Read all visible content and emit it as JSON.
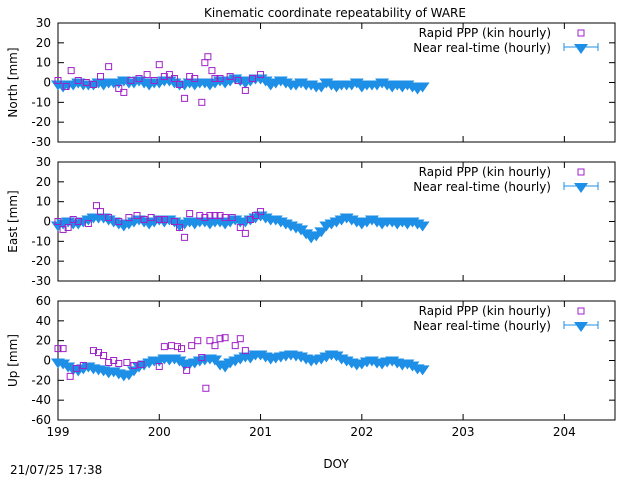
{
  "title": "Kinematic coordinate repeatability of WARE",
  "timestamp": "21/07/25 17:38",
  "colors": {
    "ppp": "#a020c8",
    "nrt": "#1e8fe6"
  },
  "chart_data": [
    {
      "type": "scatter",
      "title": "Kinematic coordinate repeatability of WARE",
      "xlabel": "DOY",
      "ylabel": "North [mm]",
      "xlim": [
        199,
        204.5
      ],
      "ylim": [
        -30,
        30
      ],
      "xticks": [
        "199",
        "200",
        "201",
        "202",
        "203",
        "204"
      ],
      "yticks": [
        "-30",
        "-20",
        "-10",
        "0",
        "10",
        "20",
        "30"
      ],
      "ytick_values": [
        -30,
        -20,
        -10,
        0,
        10,
        20,
        30
      ],
      "legend": "top-right",
      "series": [
        {
          "name": "Rapid PPP (kin hourly)",
          "marker": "square",
          "x": [
            199.0,
            199.08,
            199.13,
            199.2,
            199.28,
            199.35,
            199.42,
            199.5,
            199.6,
            199.65,
            199.72,
            199.8,
            199.88,
            199.95,
            200.0,
            200.05,
            200.1,
            200.15,
            200.2,
            200.25,
            200.3,
            200.35,
            200.42,
            200.45,
            200.48,
            200.52,
            200.55,
            200.6,
            200.7,
            200.78,
            200.85,
            200.92,
            201.0
          ],
          "y": [
            1,
            -2,
            6,
            1,
            0,
            -1,
            3,
            8,
            -3,
            -5,
            1,
            2,
            4,
            1,
            9,
            3,
            4,
            2,
            -1,
            -8,
            3,
            2,
            -10,
            10,
            13,
            6,
            2,
            2,
            3,
            1,
            -4,
            2,
            4
          ]
        },
        {
          "name": "Near real-time (hourly)",
          "marker": "triangle-down",
          "x": [
            199.0,
            199.05,
            199.1,
            199.15,
            199.2,
            199.25,
            199.3,
            199.35,
            199.4,
            199.45,
            199.5,
            199.55,
            199.6,
            199.65,
            199.7,
            199.75,
            199.8,
            199.85,
            199.9,
            199.95,
            200.0,
            200.05,
            200.1,
            200.15,
            200.2,
            200.25,
            200.3,
            200.35,
            200.4,
            200.45,
            200.5,
            200.55,
            200.6,
            200.65,
            200.7,
            200.75,
            200.8,
            200.85,
            200.9,
            200.95,
            201.0,
            201.05,
            201.1,
            201.15,
            201.2,
            201.25,
            201.3,
            201.35,
            201.4,
            201.45,
            201.5,
            201.55,
            201.6,
            201.65,
            201.7,
            201.75,
            201.8,
            201.85,
            201.9,
            201.95,
            202.0,
            202.05,
            202.1,
            202.15,
            202.2,
            202.25,
            202.3,
            202.35,
            202.4,
            202.45,
            202.5,
            202.55,
            202.6
          ],
          "y": [
            -1,
            -2,
            -1,
            -1,
            0,
            -1,
            -1,
            -1,
            0,
            -1,
            0,
            0,
            0,
            1,
            0,
            0,
            1,
            0,
            -1,
            0,
            0,
            1,
            1,
            0,
            -1,
            -1,
            0,
            -1,
            0,
            0,
            -1,
            0,
            1,
            0,
            1,
            2,
            1,
            0,
            1,
            2,
            2,
            1,
            -1,
            0,
            1,
            0,
            -1,
            -1,
            0,
            -1,
            -1,
            -2,
            -2,
            0,
            -1,
            -2,
            -1,
            -1,
            -1,
            0,
            -2,
            -1,
            -1,
            -1,
            0,
            -1,
            -2,
            -1,
            -2,
            -1,
            -2,
            -3,
            -2
          ]
        }
      ]
    },
    {
      "type": "scatter",
      "xlabel": "DOY",
      "ylabel": "East [mm]",
      "xlim": [
        199,
        204.5
      ],
      "ylim": [
        -30,
        30
      ],
      "xticks": [
        "199",
        "200",
        "201",
        "202",
        "203",
        "204"
      ],
      "yticks": [
        "-30",
        "-20",
        "-10",
        "0",
        "10",
        "20",
        "30"
      ],
      "ytick_values": [
        -30,
        -20,
        -10,
        0,
        10,
        20,
        30
      ],
      "legend": "top-right",
      "series": [
        {
          "name": "Rapid PPP (kin hourly)",
          "marker": "square",
          "x": [
            199.0,
            199.05,
            199.1,
            199.15,
            199.2,
            199.3,
            199.38,
            199.42,
            199.5,
            199.6,
            199.7,
            199.78,
            199.85,
            199.92,
            200.0,
            200.05,
            200.15,
            200.2,
            200.25,
            200.3,
            200.4,
            200.45,
            200.5,
            200.55,
            200.6,
            200.65,
            200.72,
            200.8,
            200.85,
            200.9,
            200.95,
            201.0
          ],
          "y": [
            0,
            -4,
            -3,
            1,
            0,
            -1,
            8,
            5,
            2,
            0,
            2,
            3,
            1,
            2,
            1,
            1,
            0,
            -3,
            -8,
            4,
            3,
            2,
            3,
            3,
            3,
            2,
            2,
            -3,
            -6,
            1,
            3,
            5
          ]
        },
        {
          "name": "Near real-time (hourly)",
          "marker": "triangle-down",
          "x": [
            199.0,
            199.05,
            199.1,
            199.15,
            199.2,
            199.25,
            199.3,
            199.35,
            199.4,
            199.45,
            199.5,
            199.55,
            199.6,
            199.65,
            199.7,
            199.75,
            199.8,
            199.85,
            199.9,
            199.95,
            200.0,
            200.05,
            200.1,
            200.15,
            200.2,
            200.25,
            200.3,
            200.35,
            200.4,
            200.45,
            200.5,
            200.55,
            200.6,
            200.65,
            200.7,
            200.75,
            200.8,
            200.85,
            200.9,
            200.95,
            201.0,
            201.05,
            201.1,
            201.15,
            201.2,
            201.25,
            201.3,
            201.35,
            201.4,
            201.45,
            201.5,
            201.55,
            201.6,
            201.65,
            201.7,
            201.75,
            201.8,
            201.85,
            201.9,
            201.95,
            202.0,
            202.05,
            202.1,
            202.15,
            202.2,
            202.25,
            202.3,
            202.35,
            202.4,
            202.45,
            202.5,
            202.55,
            202.6
          ],
          "y": [
            -2,
            -1,
            0,
            -1,
            -1,
            0,
            1,
            2,
            2,
            2,
            1,
            0,
            -1,
            -2,
            -1,
            0,
            1,
            0,
            -1,
            0,
            1,
            0,
            1,
            0,
            -2,
            -1,
            0,
            -1,
            0,
            0,
            -1,
            0,
            0,
            -1,
            0,
            1,
            0,
            0,
            1,
            2,
            3,
            2,
            1,
            1,
            0,
            -1,
            -2,
            -3,
            -4,
            -6,
            -8,
            -7,
            -5,
            -2,
            -1,
            0,
            1,
            2,
            1,
            0,
            -1,
            0,
            1,
            0,
            -1,
            0,
            0,
            -1,
            0,
            -1,
            0,
            -1,
            -2
          ]
        }
      ]
    },
    {
      "type": "scatter",
      "xlabel": "DOY",
      "ylabel": "Up [mm]",
      "xlim": [
        199,
        204.5
      ],
      "ylim": [
        -60,
        60
      ],
      "xticks": [
        "199",
        "200",
        "201",
        "202",
        "203",
        "204"
      ],
      "yticks": [
        "-60",
        "-40",
        "-20",
        "0",
        "20",
        "40",
        "60"
      ],
      "ytick_values": [
        -60,
        -40,
        -20,
        0,
        20,
        40,
        60
      ],
      "legend": "top-right",
      "series": [
        {
          "name": "Rapid PPP (kin hourly)",
          "marker": "square",
          "x": [
            199.0,
            199.05,
            199.12,
            199.18,
            199.25,
            199.35,
            199.4,
            199.45,
            199.5,
            199.55,
            199.6,
            199.68,
            199.75,
            199.82,
            200.0,
            200.05,
            200.12,
            200.18,
            200.22,
            200.27,
            200.32,
            200.38,
            200.42,
            200.46,
            200.5,
            200.55,
            200.6,
            200.65,
            200.75,
            200.8,
            200.85
          ],
          "y": [
            12,
            12,
            -16,
            -8,
            -5,
            10,
            8,
            5,
            -2,
            0,
            -3,
            -2,
            -5,
            -4,
            -6,
            14,
            15,
            14,
            12,
            -10,
            15,
            20,
            3,
            -28,
            20,
            15,
            22,
            23,
            15,
            22,
            10
          ]
        },
        {
          "name": "Near real-time (hourly)",
          "marker": "triangle-down",
          "x": [
            199.0,
            199.05,
            199.1,
            199.15,
            199.2,
            199.25,
            199.3,
            199.35,
            199.4,
            199.45,
            199.5,
            199.55,
            199.6,
            199.65,
            199.7,
            199.75,
            199.8,
            199.85,
            199.9,
            199.95,
            200.0,
            200.05,
            200.1,
            200.15,
            200.2,
            200.25,
            200.3,
            200.35,
            200.4,
            200.45,
            200.5,
            200.55,
            200.6,
            200.65,
            200.7,
            200.75,
            200.8,
            200.85,
            200.9,
            200.95,
            201.0,
            201.05,
            201.1,
            201.15,
            201.2,
            201.25,
            201.3,
            201.35,
            201.4,
            201.45,
            201.5,
            201.55,
            201.6,
            201.65,
            201.7,
            201.75,
            201.8,
            201.85,
            201.9,
            201.95,
            202.0,
            202.05,
            202.1,
            202.15,
            202.2,
            202.25,
            202.3,
            202.35,
            202.4,
            202.45,
            202.5,
            202.55,
            202.6
          ],
          "y": [
            -2,
            -3,
            -6,
            -9,
            -10,
            -8,
            -6,
            -8,
            -9,
            -10,
            -12,
            -11,
            -13,
            -15,
            -14,
            -10,
            -6,
            -4,
            -2,
            0,
            0,
            2,
            1,
            2,
            0,
            -4,
            -3,
            -2,
            0,
            1,
            2,
            1,
            -4,
            -6,
            -2,
            0,
            2,
            4,
            3,
            6,
            6,
            4,
            2,
            3,
            4,
            5,
            6,
            5,
            4,
            2,
            0,
            1,
            2,
            4,
            6,
            5,
            2,
            0,
            -2,
            -4,
            -3,
            -1,
            0,
            -2,
            -3,
            -1,
            0,
            -2,
            -4,
            -3,
            -5,
            -8,
            -9
          ]
        }
      ]
    }
  ]
}
